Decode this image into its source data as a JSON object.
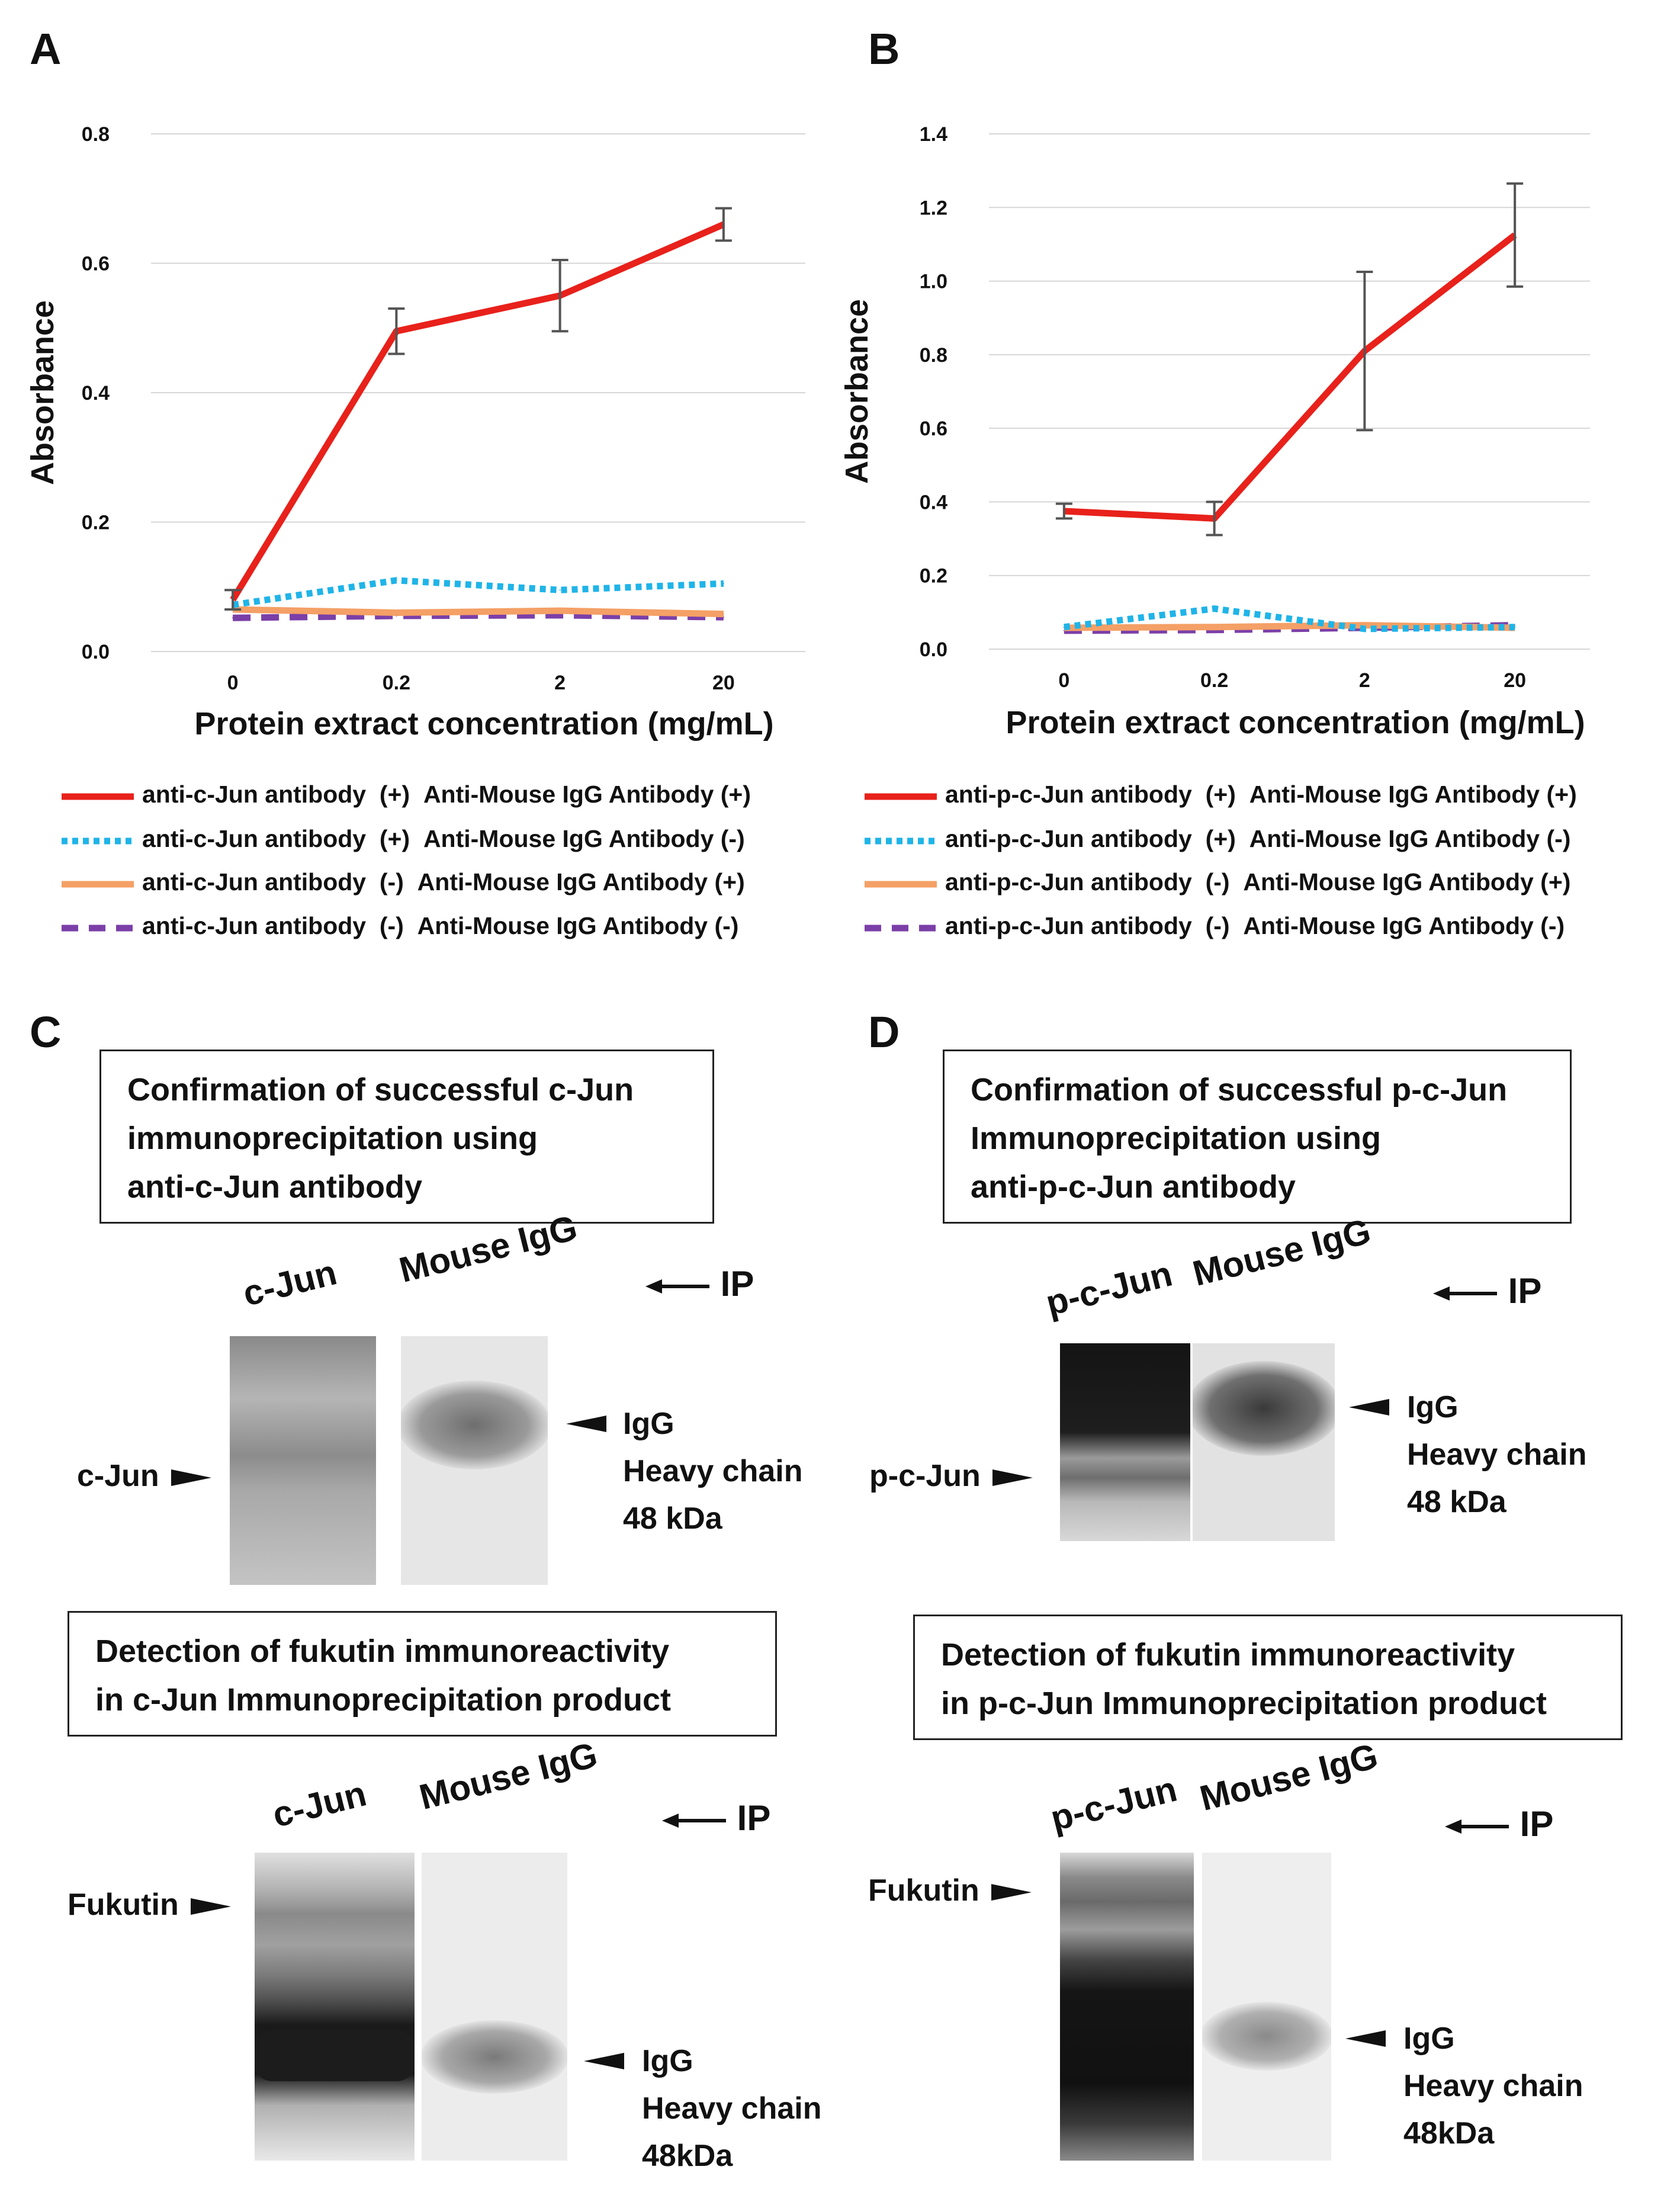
{
  "panels": {
    "A": "A",
    "B": "B",
    "C": "C",
    "D": "D"
  },
  "chart_data": [
    {
      "type": "line",
      "panel": "A",
      "xlabel": "Protein extract concentration (mg/mL)",
      "ylabel": "Absorbance",
      "categories": [
        "0",
        "0.2",
        "2",
        "20"
      ],
      "ylim": [
        0,
        0.8
      ],
      "yticks": [
        "0.0",
        "0.2",
        "0.4",
        "0.6",
        "0.8"
      ],
      "grid": true,
      "series": [
        {
          "name": "anti-c-Jun antibody (+) Anti-Mouse IgG Antibody (+)",
          "values": [
            0.08,
            0.495,
            0.55,
            0.66
          ],
          "errors": [
            0.015,
            0.035,
            0.055,
            0.025
          ],
          "color": "#e8211b",
          "style": "solid"
        },
        {
          "name": "anti-c-Jun antibody (+) Anti-Mouse IgG Antibody (-)",
          "values": [
            0.072,
            0.11,
            0.095,
            0.105
          ],
          "color": "#1fb4e8",
          "style": "dotted"
        },
        {
          "name": "anti-c-Jun antibody (-) Anti-Mouse IgG Antibody (+)",
          "values": [
            0.065,
            0.06,
            0.063,
            0.058
          ],
          "color": "#f4a066",
          "style": "solid"
        },
        {
          "name": "anti-c-Jun antibody (-) Anti-Mouse IgG Antibody (-)",
          "values": [
            0.052,
            0.055,
            0.056,
            0.053
          ],
          "color": "#7b3fa8",
          "style": "dashed"
        }
      ]
    },
    {
      "type": "line",
      "panel": "B",
      "xlabel": "Protein extract concentration (mg/mL)",
      "ylabel": "Absorbance",
      "categories": [
        "0",
        "0.2",
        "2",
        "20"
      ],
      "ylim": [
        0,
        1.4
      ],
      "yticks": [
        "0.0",
        "0.2",
        "0.4",
        "0.6",
        "0.8",
        "1.0",
        "1.2",
        "1.4"
      ],
      "grid": true,
      "series": [
        {
          "name": "anti-p-c-Jun antibody (+) Anti-Mouse IgG Antibody (+)",
          "values": [
            0.375,
            0.355,
            0.81,
            1.125
          ],
          "errors": [
            0.02,
            0.045,
            0.215,
            0.14
          ],
          "color": "#e8211b",
          "style": "solid"
        },
        {
          "name": "anti-p-c-Jun antibody (+) Anti-Mouse IgG Antibody (-)",
          "values": [
            0.06,
            0.11,
            0.055,
            0.06
          ],
          "color": "#1fb4e8",
          "style": "dotted"
        },
        {
          "name": "anti-p-c-Jun antibody (-) Anti-Mouse IgG Antibody (+)",
          "values": [
            0.058,
            0.06,
            0.065,
            0.058
          ],
          "color": "#f4a066",
          "style": "solid"
        },
        {
          "name": "anti-p-c-Jun antibody (-) Anti-Mouse IgG Antibody (-)",
          "values": [
            0.05,
            0.052,
            0.058,
            0.065
          ],
          "color": "#7b3fa8",
          "style": "dashed"
        }
      ]
    }
  ],
  "legend_A": [
    {
      "antibody": "anti-c-Jun antibody",
      "ab_sign": "(+)",
      "secondary": "Anti-Mouse IgG Antibody (+)"
    },
    {
      "antibody": "anti-c-Jun antibody",
      "ab_sign": "(+)",
      "secondary": "Anti-Mouse IgG Antibody (-)"
    },
    {
      "antibody": "anti-c-Jun antibody",
      "ab_sign": "(-)",
      "secondary": "Anti-Mouse IgG Antibody (+)"
    },
    {
      "antibody": "anti-c-Jun antibody",
      "ab_sign": "(-)",
      "secondary": "Anti-Mouse IgG Antibody (-)"
    }
  ],
  "legend_B": [
    {
      "antibody": "anti-p-c-Jun antibody",
      "ab_sign": "(+)",
      "secondary": "Anti-Mouse IgG Antibody (+)"
    },
    {
      "antibody": "anti-p-c-Jun antibody",
      "ab_sign": "(+)",
      "secondary": "Anti-Mouse IgG Antibody (-)"
    },
    {
      "antibody": "anti-p-c-Jun antibody",
      "ab_sign": "(-)",
      "secondary": "Anti-Mouse IgG Antibody (+)"
    },
    {
      "antibody": "anti-p-c-Jun antibody",
      "ab_sign": "(-)",
      "secondary": "Anti-Mouse IgG Antibody (-)"
    }
  ],
  "panel_C": {
    "box1": [
      "Confirmation of successful c-Jun",
      "immunoprecipitation using",
      "anti-c-Jun antibody"
    ],
    "lane1": "c-Jun",
    "lane2": "Mouse IgG",
    "ip": "IP",
    "left_marker": "c-Jun",
    "right_marker": [
      "IgG",
      "Heavy chain",
      "48 kDa"
    ],
    "box2": [
      "Detection of fukutin immunoreactivity",
      "in c-Jun Immunoprecipitation product"
    ],
    "lane1b": "c-Jun",
    "lane2b": "Mouse IgG",
    "ipb": "IP",
    "left_marker_b": "Fukutin",
    "right_marker_b": [
      "IgG",
      "Heavy chain",
      "48kDa"
    ]
  },
  "panel_D": {
    "box1": [
      "Confirmation of successful p-c-Jun",
      "Immunoprecipitation  using",
      "anti-p-c-Jun antibody"
    ],
    "lane1": "p-c-Jun",
    "lane2": "Mouse IgG",
    "ip": "IP",
    "left_marker": "p-c-Jun",
    "right_marker": [
      "IgG",
      "Heavy chain",
      "48 kDa"
    ],
    "box2": [
      "Detection of fukutin immunoreactivity",
      "in p-c-Jun Immunoprecipitation product"
    ],
    "lane1b": "p-c-Jun",
    "lane2b": "Mouse IgG",
    "ipb": "IP",
    "left_marker_b": "Fukutin",
    "right_marker_b": [
      "IgG",
      "Heavy chain",
      "48kDa"
    ]
  }
}
